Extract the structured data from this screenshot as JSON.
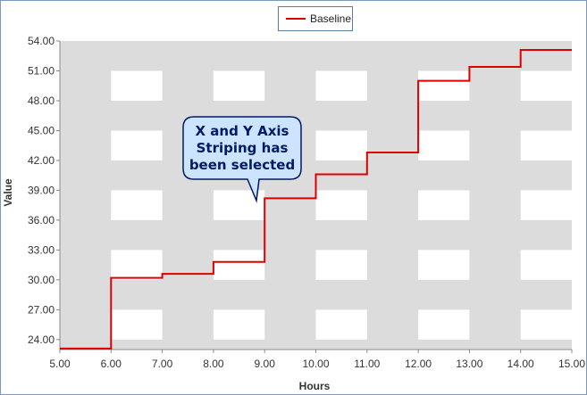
{
  "chart_data": {
    "type": "line",
    "line_style": "step",
    "xlabel": "Hours",
    "ylabel": "Value",
    "x_ticks": [
      "5.00",
      "6.00",
      "7.00",
      "8.00",
      "9.00",
      "10.00",
      "11.00",
      "12.00",
      "13.00",
      "14.00",
      "15.00"
    ],
    "y_ticks": [
      "24.00",
      "27.00",
      "30.00",
      "33.00",
      "36.00",
      "39.00",
      "42.00",
      "45.00",
      "48.00",
      "51.00",
      "54.00"
    ],
    "xlim": [
      5,
      15
    ],
    "ylim": [
      23,
      54
    ],
    "striping": "x-and-y",
    "stripe_color": "#dcdcdc",
    "legend_position": "top-center",
    "series": [
      {
        "name": "Baseline",
        "color": "#dd0000",
        "x": [
          5,
          6,
          7,
          8,
          9,
          10,
          11,
          12,
          13,
          14,
          15
        ],
        "y": [
          23.1,
          30.2,
          30.6,
          31.8,
          38.2,
          40.6,
          42.8,
          50.0,
          51.4,
          53.1,
          53.1
        ]
      }
    ],
    "annotation": {
      "lines": [
        "X and Y Axis",
        "Striping has",
        "been selected"
      ],
      "fill": "#cce4ff",
      "border": "#001a66"
    }
  }
}
